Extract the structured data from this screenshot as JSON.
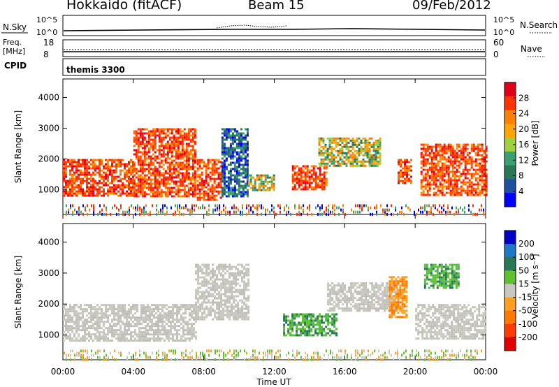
{
  "header": {
    "title": "Hokkaido (fitACF)",
    "beam": "Beam 15",
    "date": "09/Feb/2012"
  },
  "top_panels": {
    "nsky_label": "N.Sky",
    "nsearch_label": "N.Search",
    "count_ticks": [
      "10^5",
      "10^0"
    ],
    "freq_label_1": "Freq.",
    "freq_label_2": "[MHz]",
    "freq_ticks": [
      "18",
      "8"
    ],
    "nave_label": "Nave",
    "nave_ticks": [
      "60",
      "0"
    ],
    "cpid_label": "CPID",
    "cpid_value": "themis 3300"
  },
  "chart_data": [
    {
      "type": "heatmap",
      "name": "power",
      "ylabel": "Slant Range [km]",
      "yticks": [
        1000,
        2000,
        3000,
        4000
      ],
      "ylim": [
        200,
        4600
      ],
      "xlim_hours": [
        0,
        24
      ],
      "colorbar_label": "Power [dB]",
      "colorbar_ticks": [
        "28",
        "24",
        "20",
        "16",
        "12",
        "8",
        "4"
      ],
      "colorbar_colors": [
        "#e0001a",
        "#ff3300",
        "#ff8000",
        "#ffa500",
        "#a0d040",
        "#3aa070",
        "#287858",
        "#2050a0",
        "#0000ff"
      ],
      "bands": [
        {
          "t0": 0.0,
          "t1": 4.0,
          "r0": 800,
          "r1": 2000,
          "v": "strong"
        },
        {
          "t0": 4.0,
          "t1": 7.5,
          "r0": 800,
          "r1": 3000,
          "v": "strong"
        },
        {
          "t0": 7.6,
          "t1": 9.0,
          "r0": 700,
          "r1": 2000,
          "v": "strong"
        },
        {
          "t0": 9.0,
          "t1": 10.5,
          "r0": 800,
          "r1": 3000,
          "v": "weak"
        },
        {
          "t0": 10.5,
          "t1": 12.0,
          "r0": 1000,
          "r1": 1500,
          "v": "mid"
        },
        {
          "t0": 13.0,
          "t1": 15.0,
          "r0": 1000,
          "r1": 1800,
          "v": "strong"
        },
        {
          "t0": 14.5,
          "t1": 18.0,
          "r0": 1800,
          "r1": 2700,
          "v": "mid"
        },
        {
          "t0": 19.0,
          "t1": 19.8,
          "r0": 1200,
          "r1": 2000,
          "v": "strong"
        },
        {
          "t0": 20.3,
          "t1": 24.0,
          "r0": 800,
          "r1": 2500,
          "v": "strong"
        }
      ]
    },
    {
      "type": "heatmap",
      "name": "velocity",
      "ylabel": "Slant Range [km]",
      "yticks": [
        1000,
        2000,
        3000,
        4000
      ],
      "ylim": [
        200,
        4600
      ],
      "xlim_hours": [
        0,
        24
      ],
      "xticks": [
        "00:00",
        "04:00",
        "08:00",
        "12:00",
        "16:00",
        "20:00",
        "00:00"
      ],
      "xlabel": "Time UT",
      "colorbar_label": "Velocity [m s⁻¹]",
      "colorbar_ticks": [
        "200",
        "100",
        "50",
        "15",
        "-15",
        "-50",
        "-100",
        "-200"
      ],
      "colorbar_colors": [
        "#0000c8",
        "#1e78c8",
        "#287858",
        "#60c030",
        "#c8c8c0",
        "#ffa020",
        "#ff7800",
        "#ff3c00",
        "#e00000"
      ],
      "bands": [
        {
          "t0": 0.0,
          "t1": 7.5,
          "r0": 800,
          "r1": 2000,
          "v": "ground"
        },
        {
          "t0": 7.5,
          "t1": 10.5,
          "r0": 1500,
          "r1": 3300,
          "v": "ground"
        },
        {
          "t0": 12.5,
          "t1": 15.5,
          "r0": 1000,
          "r1": 1700,
          "v": "positive"
        },
        {
          "t0": 15.0,
          "t1": 19.0,
          "r0": 1800,
          "r1": 2700,
          "v": "ground"
        },
        {
          "t0": 18.5,
          "t1": 19.5,
          "r0": 1600,
          "r1": 2900,
          "v": "negative"
        },
        {
          "t0": 20.0,
          "t1": 24.0,
          "r0": 900,
          "r1": 2000,
          "v": "ground"
        },
        {
          "t0": 20.5,
          "t1": 22.5,
          "r0": 2500,
          "r1": 3300,
          "v": "positive"
        }
      ]
    }
  ]
}
